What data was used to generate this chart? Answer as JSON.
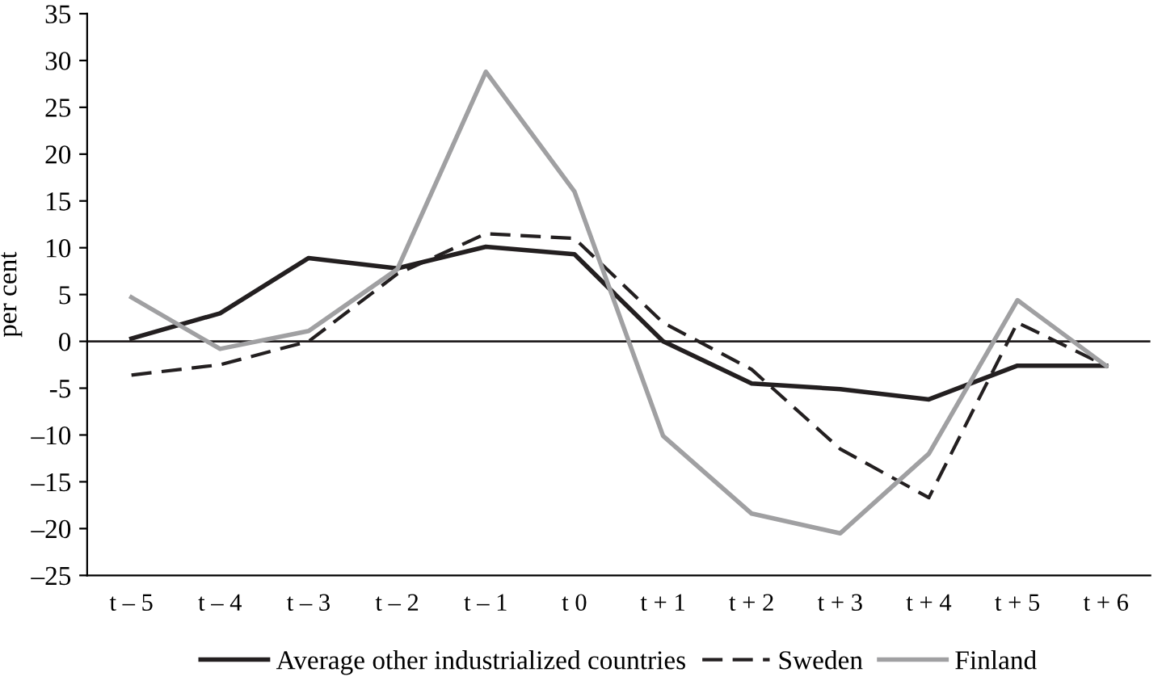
{
  "chart_data": {
    "type": "line",
    "ylabel": "per cent",
    "categories": [
      "t – 5",
      "t – 4",
      "t – 3",
      "t – 2",
      "t – 1",
      "t 0",
      "t + 1",
      "t + 2",
      "t + 3",
      "t + 4",
      "t + 5",
      "t + 6"
    ],
    "series": [
      {
        "name": "Average other industrialized countries",
        "color": "#231f20",
        "line_style": "solid",
        "values": [
          0.3,
          3,
          8.9,
          7.8,
          10.1,
          9.3,
          0,
          -4.5,
          -5.1,
          -6.2,
          -2.6,
          -2.6
        ]
      },
      {
        "name": "Sweden",
        "color": "#231f20",
        "line_style": "dashed",
        "values": [
          -3.6,
          -2.5,
          0,
          7.2,
          11.5,
          11,
          2,
          -3,
          -11.5,
          -16.7,
          2,
          -2.6
        ]
      },
      {
        "name": "Finland",
        "color": "#a0a0a2",
        "line_style": "solid",
        "values": [
          4.7,
          -0.8,
          1.1,
          7.7,
          28.8,
          16,
          -10.1,
          -18.4,
          -20.5,
          -12,
          4.4,
          -2.6
        ]
      }
    ],
    "ylim": [
      -25,
      35
    ],
    "yticks": [
      {
        "value": -25,
        "label": "–25"
      },
      {
        "value": -20,
        "label": "–20"
      },
      {
        "value": -15,
        "label": "–15"
      },
      {
        "value": -10,
        "label": "–10"
      },
      {
        "value": -5,
        "label": "-5"
      },
      0,
      5,
      10,
      15,
      20,
      25,
      30,
      35
    ],
    "ref_lines": [
      {
        "axis": "y",
        "value": 0,
        "color": "#231f20"
      }
    ],
    "grid": false,
    "legend": "bottom",
    "marker": "none"
  }
}
